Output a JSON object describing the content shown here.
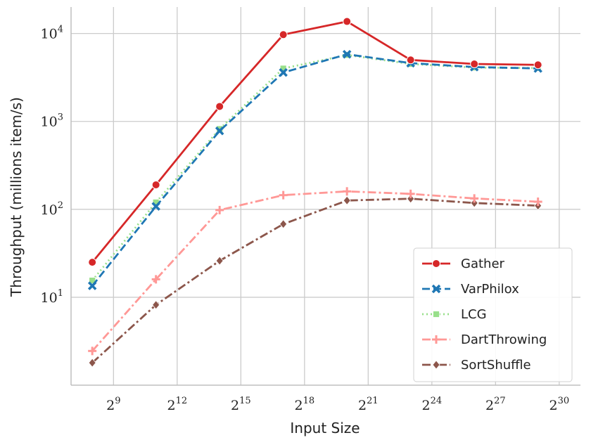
{
  "chart_data": {
    "type": "line",
    "title": "",
    "xlabel": "Input Size",
    "ylabel": "Throughput (millions item/s)",
    "x_scale": "log2",
    "y_scale": "log10",
    "grid": true,
    "legend_position": "bottom-right",
    "x_ticks": [
      {
        "base": "2",
        "exp": "9",
        "value": 512
      },
      {
        "base": "2",
        "exp": "12",
        "value": 4096
      },
      {
        "base": "2",
        "exp": "15",
        "value": 32768
      },
      {
        "base": "2",
        "exp": "18",
        "value": 262144
      },
      {
        "base": "2",
        "exp": "21",
        "value": 2097152
      },
      {
        "base": "2",
        "exp": "24",
        "value": 16777216
      },
      {
        "base": "2",
        "exp": "27",
        "value": 134217728
      },
      {
        "base": "2",
        "exp": "30",
        "value": 1073741824
      }
    ],
    "y_ticks": [
      {
        "base": "10",
        "exp": "1",
        "value": 10
      },
      {
        "base": "10",
        "exp": "2",
        "value": 100
      },
      {
        "base": "10",
        "exp": "3",
        "value": 1000
      },
      {
        "base": "10",
        "exp": "4",
        "value": 10000
      }
    ],
    "xlim": [
      128,
      2147483648
    ],
    "ylim": [
      1.0,
      20000
    ],
    "x": [
      256,
      2048,
      16384,
      131072,
      1048576,
      8388608,
      67108864,
      536870912
    ],
    "series": [
      {
        "name": "Gather",
        "color": "#d62728",
        "dash": "solid",
        "marker": "circle",
        "values": [
          25,
          190,
          1480,
          9700,
          13700,
          5000,
          4500,
          4400
        ]
      },
      {
        "name": "VarPhilox",
        "color": "#1f77b4",
        "dash": "dashed",
        "marker": "x",
        "values": [
          13.5,
          108,
          780,
          3600,
          5800,
          4600,
          4150,
          4000
        ]
      },
      {
        "name": "LCG",
        "color": "#98df8a",
        "dash": "dotted",
        "marker": "square",
        "values": [
          15.5,
          120,
          820,
          4000,
          5700,
          4500,
          4100,
          4050
        ]
      },
      {
        "name": "DartThrowing",
        "color": "#ff9896",
        "dash": "dashdot",
        "marker": "plus",
        "values": [
          2.45,
          16,
          98,
          145,
          160,
          150,
          133,
          122
        ]
      },
      {
        "name": "SortShuffle",
        "color": "#8c564b",
        "dash": "dashdot",
        "marker": "diamond",
        "values": [
          1.8,
          8.2,
          26,
          68,
          126,
          132,
          118,
          110
        ]
      }
    ]
  }
}
